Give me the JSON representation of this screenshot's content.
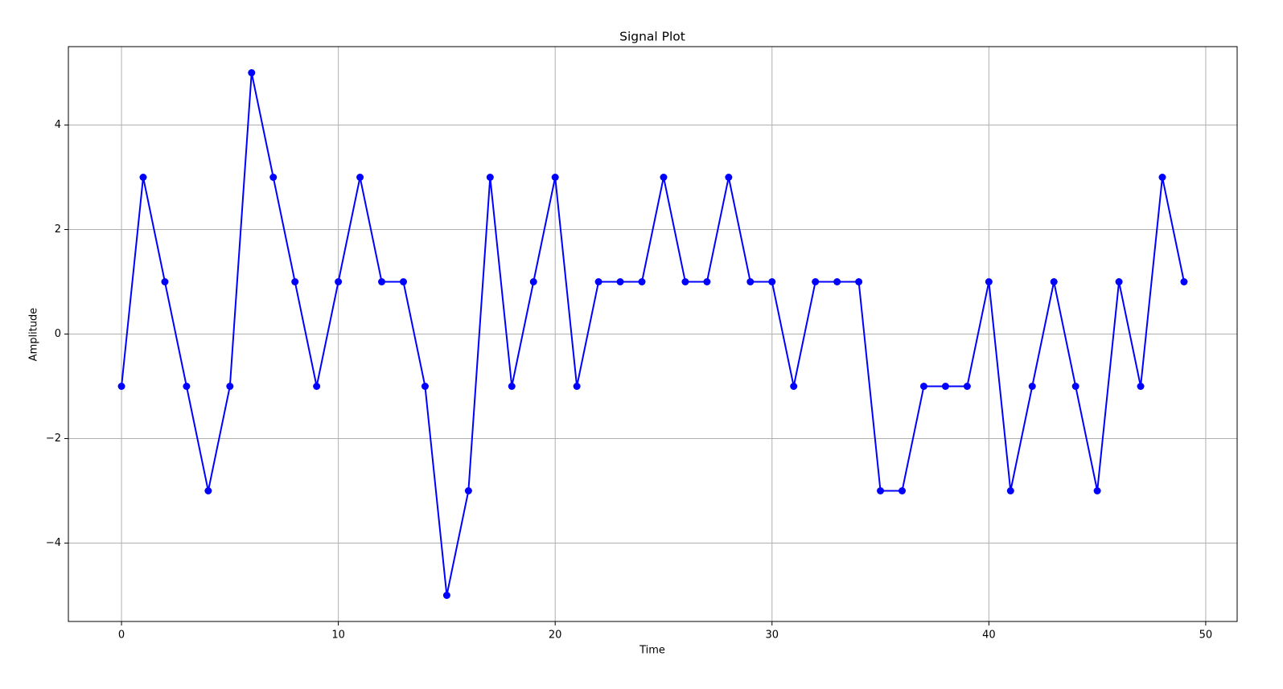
{
  "chart_data": {
    "type": "line",
    "title": "Signal Plot",
    "x_label": "Time",
    "y_label": "Amplitude",
    "x": [
      0,
      1,
      2,
      3,
      4,
      5,
      6,
      7,
      8,
      9,
      10,
      11,
      12,
      13,
      14,
      15,
      16,
      17,
      18,
      19,
      20,
      21,
      22,
      23,
      24,
      25,
      26,
      27,
      28,
      29,
      30,
      31,
      32,
      33,
      34,
      35,
      36,
      37,
      38,
      39,
      40,
      41,
      42,
      43,
      44,
      45,
      46,
      47,
      48,
      49
    ],
    "values": [
      -1,
      3,
      1,
      -1,
      -3,
      -1,
      5,
      3,
      1,
      -1,
      1,
      3,
      1,
      1,
      -1,
      -5,
      -3,
      3,
      -1,
      1,
      3,
      -1,
      1,
      1,
      1,
      3,
      1,
      1,
      3,
      1,
      1,
      -1,
      1,
      1,
      1,
      -3,
      -3,
      -1,
      -1,
      -1,
      1,
      -3,
      -1,
      1,
      -1,
      -3,
      1,
      -1,
      3,
      1
    ],
    "color": "#0000ff",
    "marker": true,
    "xlim": [
      -2.45,
      51.45
    ],
    "ylim": [
      -5.5,
      5.5
    ],
    "xticks": [
      0,
      10,
      20,
      30,
      40,
      50
    ],
    "yticks": [
      {
        "value": -4,
        "label": "−4"
      },
      {
        "value": -2,
        "label": "−2"
      },
      0,
      2,
      4
    ],
    "grid": true
  }
}
